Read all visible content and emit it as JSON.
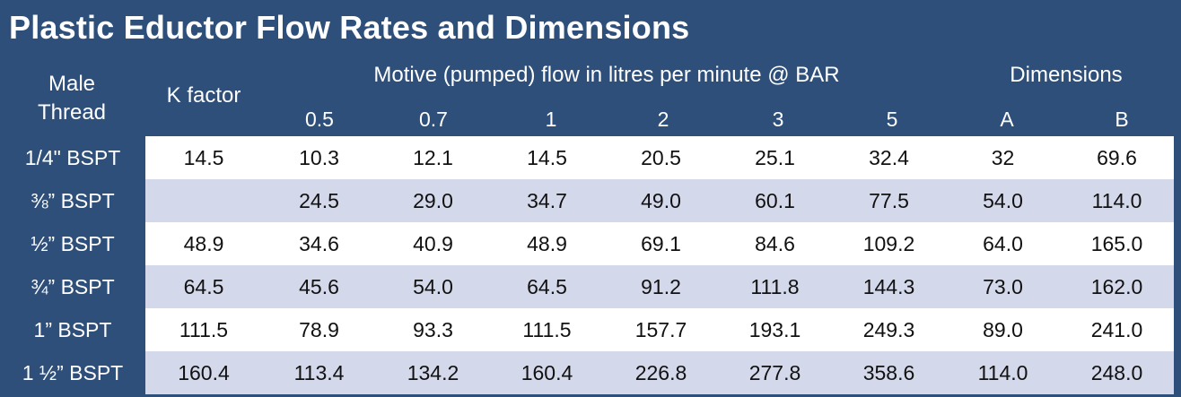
{
  "title": "Plastic Eductor Flow Rates and Dimensions",
  "header": {
    "male_thread_line1": "Male",
    "male_thread_line2": "Thread",
    "k_factor": "K factor",
    "motive_flow": "Motive (pumped) flow in litres per minute @ BAR",
    "dimensions": "Dimensions",
    "pressures": [
      "0.5",
      "0.7",
      "1",
      "2",
      "3",
      "5"
    ],
    "dims": [
      "A",
      "B"
    ]
  },
  "rows": [
    {
      "thread": "1/4\" BSPT",
      "k": "14.5",
      "flows": [
        "10.3",
        "12.1",
        "14.5",
        "20.5",
        "25.1",
        "32.4"
      ],
      "a": "32",
      "b": "69.6"
    },
    {
      "thread": "⅜” BSPT",
      "k": "",
      "flows": [
        "24.5",
        "29.0",
        "34.7",
        "49.0",
        "60.1",
        "77.5"
      ],
      "a": "54.0",
      "b": "114.0"
    },
    {
      "thread": "½” BSPT",
      "k": "48.9",
      "flows": [
        "34.6",
        "40.9",
        "48.9",
        "69.1",
        "84.6",
        "109.2"
      ],
      "a": "64.0",
      "b": "165.0"
    },
    {
      "thread": "¾” BSPT",
      "k": "64.5",
      "flows": [
        "45.6",
        "54.0",
        "64.5",
        "91.2",
        "111.8",
        "144.3"
      ],
      "a": "73.0",
      "b": "162.0"
    },
    {
      "thread": "1” BSPT",
      "k": "111.5",
      "flows": [
        "78.9",
        "93.3",
        "111.5",
        "157.7",
        "193.1",
        "249.3"
      ],
      "a": "89.0",
      "b": "241.0"
    },
    {
      "thread": "1 ½” BSPT",
      "k": "160.4",
      "flows": [
        "113.4",
        "134.2",
        "160.4",
        "226.8",
        "277.8",
        "358.6"
      ],
      "a": "114.0",
      "b": "248.0"
    }
  ],
  "colors": {
    "header_bg": "#2e4f7a",
    "row_white": "#ffffff",
    "row_alt": "#d3d8ea"
  }
}
